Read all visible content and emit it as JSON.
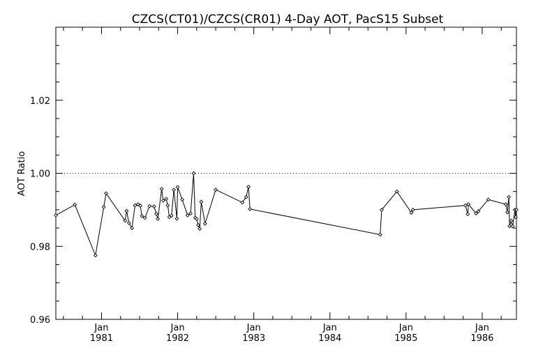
{
  "chart_data": {
    "type": "line",
    "title": "CZCS(CT01)/CZCS(CR01) 4-Day AOT, PacS15 Subset",
    "xlabel": "",
    "ylabel": "AOT Ratio",
    "xlim": [
      1980.4,
      1986.45
    ],
    "ylim": [
      0.96,
      1.04
    ],
    "reference_line": {
      "y": 1.0,
      "style": "dotted"
    },
    "x_ticks": [
      {
        "x": 1981.0,
        "line1": "Jan",
        "line2": "1981"
      },
      {
        "x": 1982.0,
        "line1": "Jan",
        "line2": "1982"
      },
      {
        "x": 1983.0,
        "line1": "Jan",
        "line2": "1983"
      },
      {
        "x": 1984.0,
        "line1": "Jan",
        "line2": "1984"
      },
      {
        "x": 1985.0,
        "line1": "Jan",
        "line2": "1985"
      },
      {
        "x": 1986.0,
        "line1": "Jan",
        "line2": "1986"
      }
    ],
    "y_ticks": [
      {
        "y": 0.96,
        "label": "0.96"
      },
      {
        "y": 0.98,
        "label": "0.98"
      },
      {
        "y": 1.0,
        "label": "1.00"
      },
      {
        "y": 1.02,
        "label": "1.02"
      }
    ],
    "series": [
      {
        "marker": "diamond",
        "x": [
          1980.4,
          1980.65,
          1980.92,
          1981.03,
          1981.06,
          1981.31,
          1981.33,
          1981.36,
          1981.4,
          1981.44,
          1981.48,
          1981.51,
          1981.53,
          1981.57,
          1981.63,
          1981.69,
          1981.72,
          1981.74,
          1981.79,
          1981.81,
          1981.85,
          1981.87,
          1981.89,
          1981.92,
          1981.95,
          1981.99,
          1982.0,
          1982.06,
          1982.13,
          1982.17,
          1982.21,
          1982.23,
          1982.25,
          1982.27,
          1982.29,
          1982.31,
          1982.36,
          1982.5,
          1982.85,
          1982.9,
          1982.93,
          1982.95,
          1984.66,
          1984.68,
          1984.88,
          1985.07,
          1985.09,
          1985.78,
          1985.81,
          1985.82,
          1985.92,
          1985.95,
          1986.08,
          1986.31,
          1986.33,
          1986.35,
          1986.36,
          1986.38,
          1986.4,
          1986.43,
          1986.44,
          1986.45
        ],
        "y": [
          0.9885,
          0.9914,
          0.9775,
          0.9908,
          0.9945,
          0.987,
          0.9897,
          0.9864,
          0.985,
          0.9912,
          0.9915,
          0.9911,
          0.9883,
          0.9878,
          0.991,
          0.9909,
          0.9889,
          0.9875,
          0.9957,
          0.9925,
          0.993,
          0.9912,
          0.988,
          0.9884,
          0.9955,
          0.9876,
          0.9962,
          0.9928,
          0.9885,
          0.989,
          1.0,
          0.9878,
          0.9875,
          0.9858,
          0.9848,
          0.9922,
          0.9862,
          0.9955,
          0.992,
          0.9935,
          0.9963,
          0.9902,
          0.9832,
          0.99,
          0.995,
          0.9892,
          0.99,
          0.9912,
          0.9888,
          0.9915,
          0.989,
          0.9896,
          0.9928,
          0.9915,
          0.9893,
          0.9935,
          0.9855,
          0.987,
          0.9855,
          0.99,
          0.988,
          0.99
        ]
      }
    ]
  }
}
